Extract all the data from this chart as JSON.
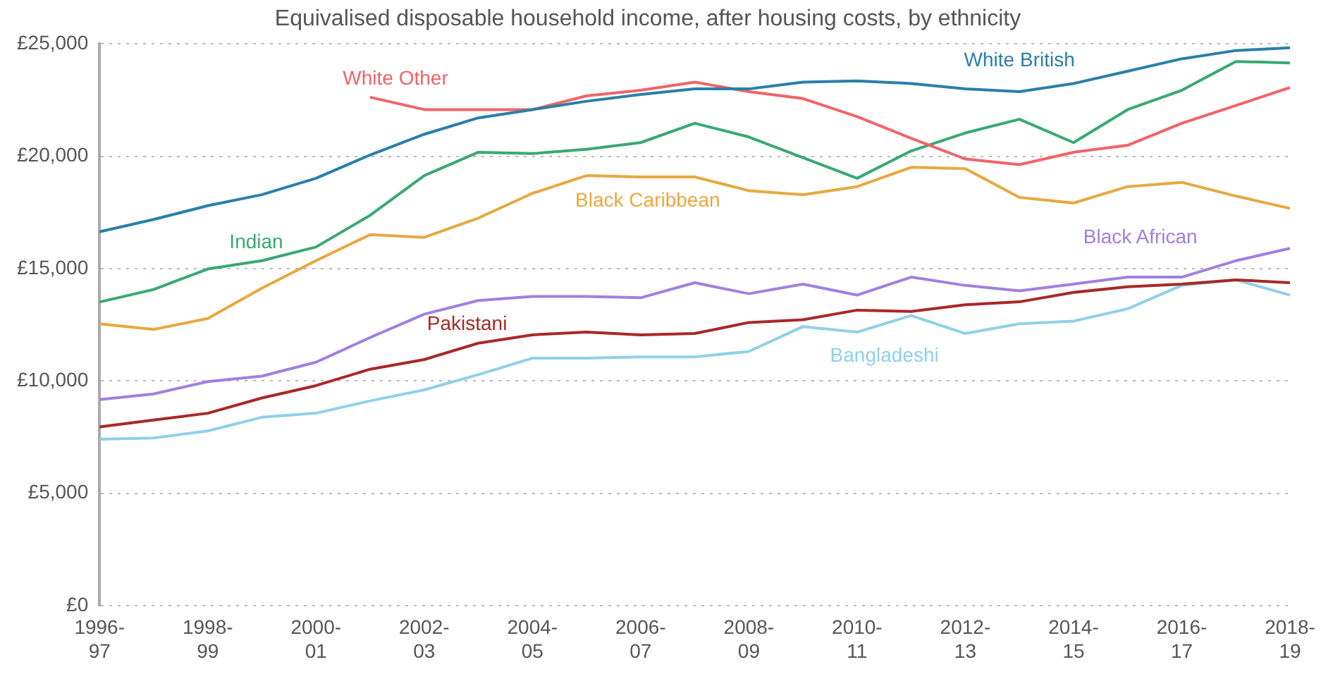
{
  "chart_data": {
    "type": "line",
    "title": "Equivalised disposable household income, after housing costs, by ethnicity",
    "categories": [
      "1996-97",
      null,
      "1998-99",
      null,
      "2000-01",
      null,
      "2002-03",
      null,
      "2004-05",
      null,
      "2006-07",
      null,
      "2008-09",
      null,
      "2010-11",
      null,
      "2012-13",
      null,
      "2014-15",
      null,
      "2016-17",
      null,
      "2018-19"
    ],
    "series": [
      {
        "name": "White British",
        "color": "#2a7fa8",
        "values": [
          16640,
          17190,
          17800,
          18290,
          19020,
          20060,
          20980,
          21710,
          22080,
          22450,
          22750,
          23000,
          23000,
          23300,
          23360,
          23240,
          23000,
          22880,
          23240,
          23790,
          24340,
          24710,
          24830
        ]
      },
      {
        "name": "White Other",
        "color": "#f06468",
        "values": [
          null,
          null,
          null,
          null,
          null,
          22630,
          22080,
          22080,
          22080,
          22690,
          22940,
          23300,
          22880,
          22570,
          21770,
          20800,
          19880,
          19630,
          20180,
          20490,
          21470,
          22260,
          23060
        ]
      },
      {
        "name": "Indian",
        "color": "#3aa874",
        "values": [
          13510,
          14070,
          14980,
          15350,
          15960,
          17370,
          19140,
          20180,
          20120,
          20310,
          20610,
          21470,
          20860,
          19940,
          19020,
          20240,
          21040,
          21650,
          20610,
          22080,
          22940,
          24220,
          24160
        ]
      },
      {
        "name": "Black Caribbean",
        "color": "#e8a840",
        "values": [
          12540,
          12290,
          12780,
          14130,
          15350,
          16510,
          16390,
          17250,
          18350,
          19140,
          19080,
          19080,
          18470,
          18290,
          18650,
          19510,
          19450,
          18170,
          17920,
          18650,
          18840,
          18230,
          17680
        ]
      },
      {
        "name": "Black African",
        "color": "#a080e0",
        "values": [
          9170,
          9420,
          9970,
          10210,
          10830,
          11930,
          12970,
          13580,
          13760,
          13760,
          13700,
          14370,
          13880,
          14310,
          13820,
          14620,
          14250,
          14010,
          14310,
          14620,
          14620,
          15350,
          15900
        ]
      },
      {
        "name": "Pakistani",
        "color": "#a82828",
        "values": [
          7950,
          8260,
          8560,
          9240,
          9790,
          10520,
          10950,
          11680,
          12050,
          12170,
          12050,
          12110,
          12600,
          12720,
          13150,
          13090,
          13390,
          13520,
          13940,
          14190,
          14310,
          14500,
          14370
        ]
      },
      {
        "name": "Bangladeshi",
        "color": "#90d0e8",
        "values": [
          7400,
          7460,
          7770,
          8380,
          8560,
          9110,
          9600,
          10280,
          11010,
          11010,
          11070,
          11070,
          11310,
          12420,
          12170,
          12910,
          12110,
          12540,
          12660,
          13210,
          14250,
          14500,
          13820
        ]
      }
    ],
    "ylim": [
      0,
      25000
    ],
    "yticks": [
      {
        "value": 0,
        "label": "£0"
      },
      {
        "value": 5000,
        "label": "£5,000"
      },
      {
        "value": 10000,
        "label": "£10,000"
      },
      {
        "value": 15000,
        "label": "£15,000"
      },
      {
        "value": 20000,
        "label": "£20,000"
      },
      {
        "value": 25000,
        "label": "£25,000"
      }
    ],
    "grid": "y",
    "legend": false,
    "marker": "none",
    "line_style": "solid"
  }
}
